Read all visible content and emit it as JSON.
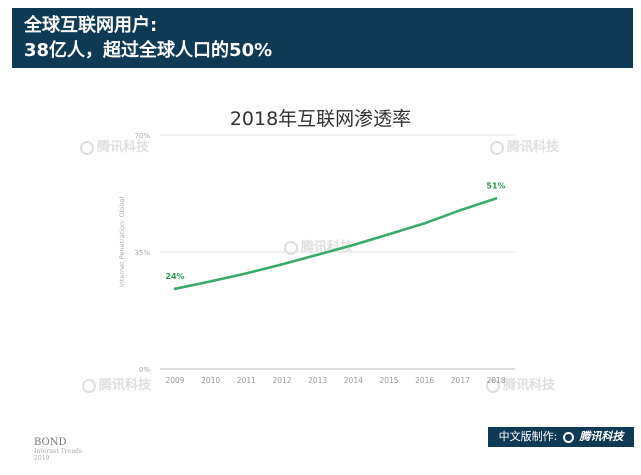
{
  "header": {
    "line1": "全球互联网用户:",
    "line2": "38亿人，超过全球人口的50%"
  },
  "watermark": "腾讯科技",
  "footer": {
    "source_brand": "BOND",
    "source_sub": "Internet Trends",
    "source_year": "2019",
    "badge_prefix": "中文版制作:",
    "badge_brand": "腾讯科技"
  },
  "chart_data": {
    "type": "line",
    "title": "2018年互联网渗透率",
    "ylabel": "Internet Penetration: Global",
    "x": [
      2009,
      2010,
      2011,
      2012,
      2013,
      2014,
      2015,
      2016,
      2017,
      2018
    ],
    "series": [
      {
        "values": [
          24,
          26.2,
          28.6,
          31.3,
          34.2,
          37.1,
          40.3,
          43.6,
          47.5,
          51
        ]
      }
    ],
    "data_labels": [
      {
        "x": 2009,
        "text": "24%"
      },
      {
        "x": 2018,
        "text": "51%"
      }
    ],
    "yticks": [
      "0%",
      "35%",
      "70%"
    ],
    "ylim": [
      0,
      70
    ],
    "grid": true,
    "color": "#3aaa6a",
    "label_color": "#2e9a56"
  }
}
